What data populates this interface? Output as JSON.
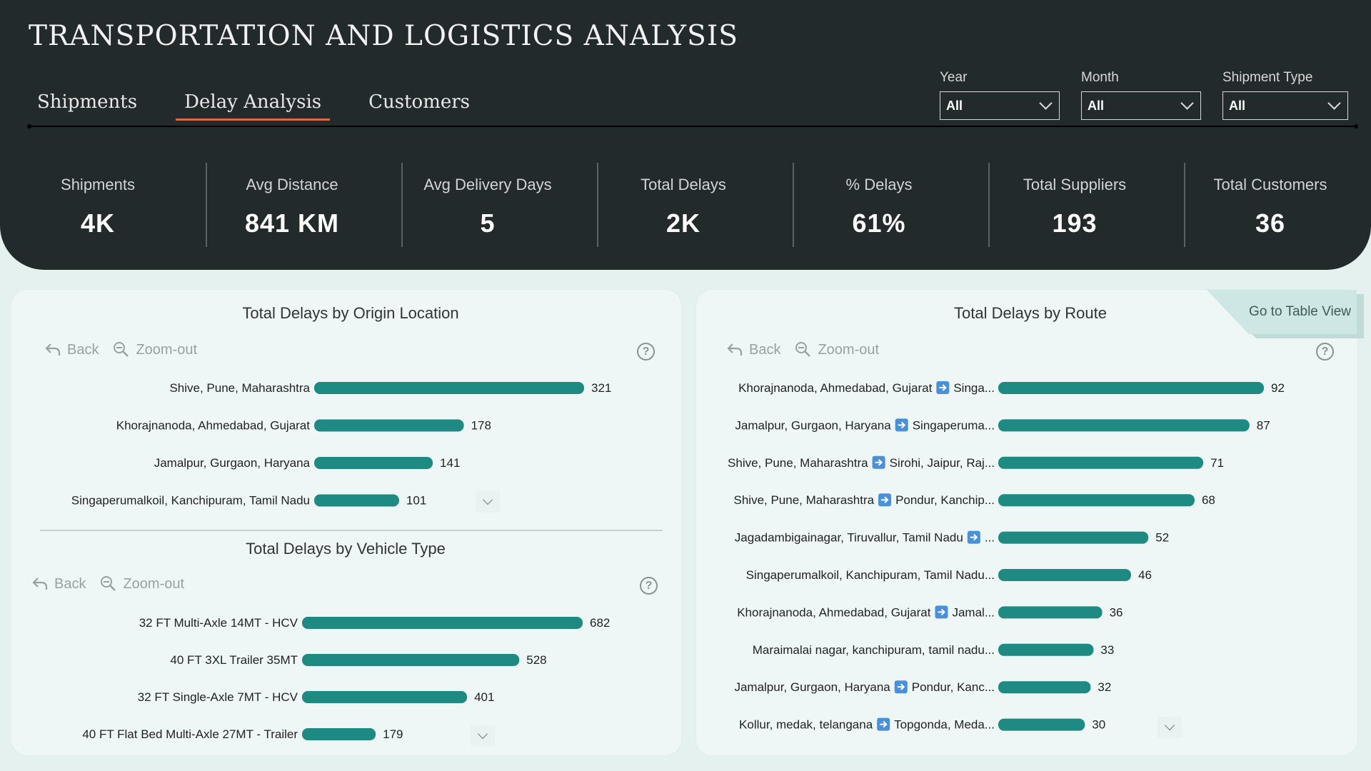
{
  "header": {
    "title": "TRANSPORTATION AND LOGISTICS ANALYSIS",
    "tabs": [
      {
        "label": "Shipments"
      },
      {
        "label": "Delay Analysis"
      },
      {
        "label": "Customers"
      }
    ],
    "active_tab": "Delay Analysis",
    "filters": [
      {
        "label": "Year",
        "value": "All"
      },
      {
        "label": "Month",
        "value": "All"
      },
      {
        "label": "Shipment Type",
        "value": "All"
      }
    ]
  },
  "kpis": [
    {
      "label": "Shipments",
      "value": "4K"
    },
    {
      "label": "Avg Distance",
      "value": "841 KM"
    },
    {
      "label": "Avg Delivery Days",
      "value": "5"
    },
    {
      "label": "Total Delays",
      "value": "2K"
    },
    {
      "label": "% Delays",
      "value": "61%"
    },
    {
      "label": "Total Suppliers",
      "value": "193"
    },
    {
      "label": "Total Customers",
      "value": "36"
    }
  ],
  "toolbar": {
    "back_label": "Back",
    "zoom_label": "Zoom-out",
    "help_symbol": "?"
  },
  "table_view_label": "Go to Table View",
  "colors": {
    "bar": "#1f8a82",
    "header_bg": "#232a2b",
    "active_tab_underline": "#d96b4b"
  },
  "chart_data": [
    {
      "type": "bar",
      "orientation": "horizontal",
      "title": "Total Delays by Origin Location",
      "categories": [
        "Shive, Pune, Maharashtra",
        "Khorajnanoda, Ahmedabad, Gujarat",
        "Jamalpur, Gurgaon, Haryana",
        "Singaperumalkoil, Kanchipuram, Tamil Nadu"
      ],
      "values": [
        321,
        178,
        141,
        101
      ]
    },
    {
      "type": "bar",
      "orientation": "horizontal",
      "title": "Total Delays by Vehicle Type",
      "categories": [
        "32 FT Multi-Axle 14MT - HCV",
        "40 FT 3XL Trailer 35MT",
        "32 FT Single-Axle 7MT - HCV",
        "40 FT Flat Bed Multi-Axle 27MT - Trailer"
      ],
      "values": [
        682,
        528,
        401,
        179
      ]
    },
    {
      "type": "bar",
      "orientation": "horizontal",
      "title": "Total Delays by Route",
      "categories": [
        {
          "origin": "Khorajnanoda, Ahmedabad, Gujarat",
          "dest": "Singa...",
          "arrow": true
        },
        {
          "origin": "Jamalpur, Gurgaon, Haryana",
          "dest": "Singaperuma...",
          "arrow": true
        },
        {
          "origin": "Shive, Pune, Maharashtra",
          "dest": "Sirohi, Jaipur, Raj...",
          "arrow": true
        },
        {
          "origin": "Shive, Pune, Maharashtra",
          "dest": "Pondur, Kanchip...",
          "arrow": true
        },
        {
          "origin": "Jagadambigainagar, Tiruvallur, Tamil Nadu",
          "dest": "...",
          "arrow": true
        },
        {
          "origin": "Singaperumalkoil, Kanchipuram, Tamil Nadu...",
          "dest": "",
          "arrow": false
        },
        {
          "origin": "Khorajnanoda, Ahmedabad, Gujarat",
          "dest": "Jamal...",
          "arrow": true
        },
        {
          "origin": "Maraimalai nagar, kanchipuram, tamil nadu...",
          "dest": "",
          "arrow": false
        },
        {
          "origin": "Jamalpur, Gurgaon, Haryana",
          "dest": "Pondur, Kanc...",
          "arrow": true
        },
        {
          "origin": "Kollur, medak, telangana",
          "dest": "Topgonda, Meda...",
          "arrow": true
        }
      ],
      "values": [
        92,
        87,
        71,
        68,
        52,
        46,
        36,
        33,
        32,
        30
      ]
    }
  ]
}
